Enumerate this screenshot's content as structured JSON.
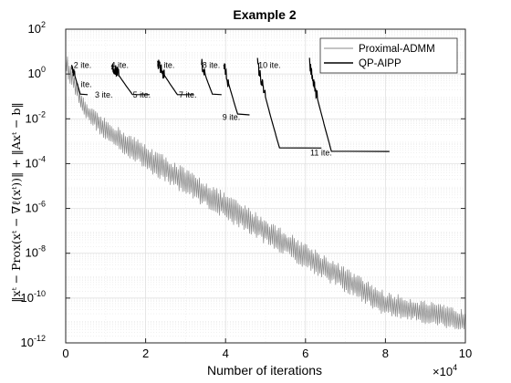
{
  "chart_data": {
    "type": "line",
    "title": "Example 2",
    "xlabel": "Number of iterations",
    "x_multiplier": "×10",
    "x_multiplier_exp": "4",
    "ylabel": "‖xᵗ − Prox(xᵗ − ∇ℓ(xᵗ))‖ + ‖Axᵗ − b‖",
    "x_scale": "linear",
    "y_scale": "log",
    "xlim": [
      0,
      100000
    ],
    "ylim": [
      1e-12,
      100
    ],
    "x_ticks": [
      0,
      20000,
      40000,
      60000,
      80000,
      100000
    ],
    "x_tick_labels": [
      "0",
      "2",
      "4",
      "6",
      "8",
      "10"
    ],
    "y_ticks": [
      1e-12,
      1e-10,
      1e-08,
      1e-06,
      0.0001,
      0.01,
      1,
      100
    ],
    "y_tick_labels": [
      {
        "base": "10",
        "exp": "-12"
      },
      {
        "base": "10",
        "exp": "-10"
      },
      {
        "base": "10",
        "exp": "-8"
      },
      {
        "base": "10",
        "exp": "-6"
      },
      {
        "base": "10",
        "exp": "-4"
      },
      {
        "base": "10",
        "exp": "-2"
      },
      {
        "base": "10",
        "exp": "0"
      },
      {
        "base": "10",
        "exp": "2"
      }
    ],
    "grid": true,
    "legend_position": "top-right",
    "series": [
      {
        "name": "Proximal-ADMM",
        "color": "#8a8a8a",
        "style": "oscillating band, log-linear decay",
        "x": [
          0,
          5000,
          10000,
          20000,
          40000,
          60000,
          80000,
          100000
        ],
        "upper_envelope": [
          10,
          0.05,
          0.01,
          0.0008,
          5e-06,
          3e-08,
          2e-10,
          3e-11
        ],
        "lower_envelope": [
          1,
          0.01,
          0.001,
          5e-05,
          3e-07,
          2e-09,
          1.5e-11,
          3e-12
        ]
      },
      {
        "name": "QP-AIPP",
        "color": "#000000",
        "style": "outer iterations, each decaying then flat",
        "segments": [
          {
            "start": 1500,
            "end": 5500,
            "start_y": 3,
            "plateau_y": 0.12
          },
          {
            "start": 11500,
            "end": 21000,
            "start_y": 3,
            "plateau_y": 0.12
          },
          {
            "start": 23000,
            "end": 32000,
            "start_y": 3,
            "plateau_y": 0.12
          },
          {
            "start": 34000,
            "end": 39000,
            "start_y": 3,
            "plateau_y": 0.12
          },
          {
            "start": 39500,
            "end": 46000,
            "start_y": 3,
            "plateau_y": 0.015
          },
          {
            "start": 48000,
            "end": 64000,
            "start_y": 3,
            "plateau_y": 0.0005
          },
          {
            "start": 61000,
            "end": 81000,
            "start_y": 3,
            "plateau_y": 0.00035
          }
        ]
      }
    ],
    "annotations": [
      {
        "text": "2 ite.",
        "x": 2000,
        "y": 2.5
      },
      {
        "text": "ite.",
        "x": 3800,
        "y": 0.35
      },
      {
        "text": "3 ite.",
        "x": 7300,
        "y": 0.12
      },
      {
        "text": "4 ite.",
        "x": 11300,
        "y": 2.5
      },
      {
        "text": "5 ite.",
        "x": 16800,
        "y": 0.12
      },
      {
        "text": "6 ite.",
        "x": 22800,
        "y": 2.5
      },
      {
        "text": "7 ite.",
        "x": 28300,
        "y": 0.12
      },
      {
        "text": "8 ite.",
        "x": 34200,
        "y": 2.5
      },
      {
        "text": "9 ite.",
        "x": 39200,
        "y": 0.012
      },
      {
        "text": "10 ite.",
        "x": 48200,
        "y": 2.5
      },
      {
        "text": "11 ite.",
        "x": 61200,
        "y": 0.0003
      }
    ]
  }
}
